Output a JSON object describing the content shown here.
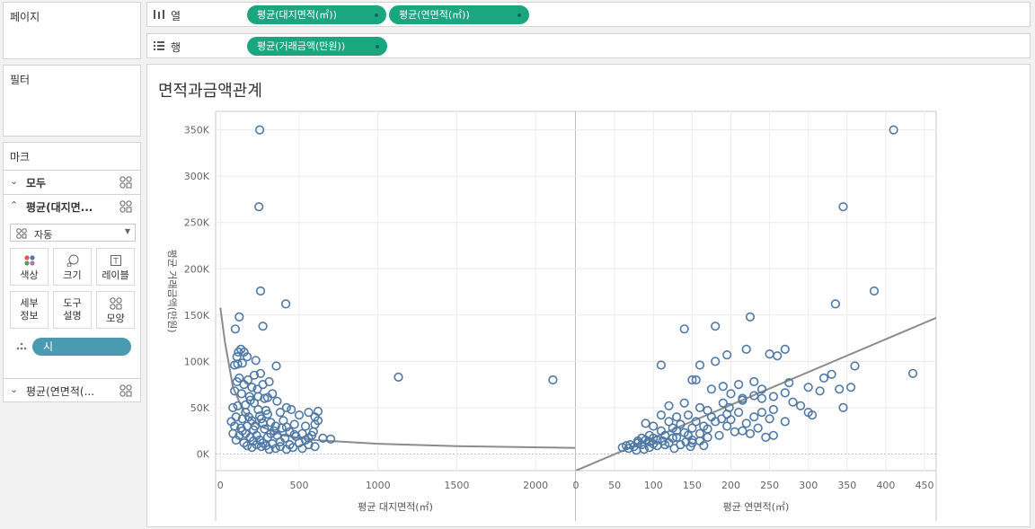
{
  "left_panel": {
    "pages_title": "페이지",
    "filters_title": "필터",
    "marks": {
      "title": "마크",
      "all_label": "모두",
      "card1_label": "평균(대지면...",
      "mark_type": "자동",
      "buttons": [
        "색상",
        "크기",
        "레이블",
        "세부\n정보",
        "도구\n설명",
        "모양"
      ],
      "detail_pill": "시",
      "card2_label": "평균(연면적(..."
    }
  },
  "shelves": {
    "columns_label": "열",
    "rows_label": "행",
    "column_pills": [
      "평균(대지면적(㎡))",
      "평균(연면적(㎡))"
    ],
    "row_pills": [
      "평균(거래금액(만원))"
    ]
  },
  "view": {
    "title": "면적과금액관계"
  },
  "chart_data": [
    {
      "type": "scatter",
      "xlabel": "평균 대지면적(㎡)",
      "ylabel": "평균 거래금액(만원)",
      "xlim": [
        -30,
        2250
      ],
      "ylim": [
        -18000,
        370000
      ],
      "xticks": [
        "0",
        "500",
        "1000",
        "1500",
        "2000"
      ],
      "yticks": [
        "0K",
        "50K",
        "100K",
        "150K",
        "200K",
        "250K",
        "300K",
        "350K"
      ],
      "marker": "circle-open",
      "color": "#4e79a7",
      "trend": "power",
      "trend_line": [
        [
          0,
          158000
        ],
        [
          30,
          120000
        ],
        [
          80,
          72000
        ],
        [
          150,
          45000
        ],
        [
          250,
          30000
        ],
        [
          400,
          20000
        ],
        [
          600,
          15000
        ],
        [
          1000,
          11000
        ],
        [
          1500,
          8500
        ],
        [
          2250,
          6500
        ]
      ],
      "points": [
        [
          250,
          350000
        ],
        [
          245,
          267000
        ],
        [
          255,
          176000
        ],
        [
          415,
          162000
        ],
        [
          120,
          148000
        ],
        [
          270,
          138000
        ],
        [
          95,
          135000
        ],
        [
          130,
          113000
        ],
        [
          115,
          110000
        ],
        [
          150,
          110000
        ],
        [
          105,
          105000
        ],
        [
          170,
          105000
        ],
        [
          110,
          97000
        ],
        [
          140,
          98000
        ],
        [
          225,
          101000
        ],
        [
          90,
          96000
        ],
        [
          355,
          95000
        ],
        [
          1130,
          83000
        ],
        [
          2110,
          80000
        ],
        [
          120,
          82000
        ],
        [
          175,
          80000
        ],
        [
          215,
          85000
        ],
        [
          255,
          87000
        ],
        [
          105,
          78000
        ],
        [
          200,
          72000
        ],
        [
          270,
          75000
        ],
        [
          310,
          78000
        ],
        [
          150,
          75000
        ],
        [
          235,
          70000
        ],
        [
          90,
          68000
        ],
        [
          135,
          65000
        ],
        [
          185,
          62000
        ],
        [
          330,
          65000
        ],
        [
          280,
          60000
        ],
        [
          215,
          55000
        ],
        [
          360,
          57000
        ],
        [
          420,
          50000
        ],
        [
          450,
          48000
        ],
        [
          80,
          50000
        ],
        [
          110,
          52000
        ],
        [
          160,
          45000
        ],
        [
          240,
          48000
        ],
        [
          300,
          43000
        ],
        [
          380,
          45000
        ],
        [
          500,
          42000
        ],
        [
          560,
          45000
        ],
        [
          620,
          46000
        ],
        [
          600,
          40000
        ],
        [
          100,
          40000
        ],
        [
          140,
          38000
        ],
        [
          200,
          36000
        ],
        [
          260,
          38000
        ],
        [
          320,
          34000
        ],
        [
          400,
          36000
        ],
        [
          470,
          32000
        ],
        [
          540,
          30000
        ],
        [
          600,
          32000
        ],
        [
          620,
          36000
        ],
        [
          70,
          35000
        ],
        [
          90,
          30000
        ],
        [
          130,
          28000
        ],
        [
          170,
          30000
        ],
        [
          210,
          26000
        ],
        [
          280,
          27000
        ],
        [
          340,
          25000
        ],
        [
          390,
          28000
        ],
        [
          440,
          24000
        ],
        [
          520,
          22000
        ],
        [
          590,
          24000
        ],
        [
          80,
          22000
        ],
        [
          120,
          20000
        ],
        [
          160,
          22000
        ],
        [
          230,
          20000
        ],
        [
          300,
          18000
        ],
        [
          360,
          20000
        ],
        [
          410,
          17000
        ],
        [
          480,
          19000
        ],
        [
          560,
          17000
        ],
        [
          650,
          17000
        ],
        [
          700,
          16000
        ],
        [
          100,
          15000
        ],
        [
          150,
          12000
        ],
        [
          210,
          14000
        ],
        [
          270,
          12000
        ],
        [
          330,
          11000
        ],
        [
          380,
          13000
        ],
        [
          440,
          10000
        ],
        [
          500,
          12000
        ],
        [
          560,
          10000
        ],
        [
          600,
          8000
        ],
        [
          200,
          7000
        ],
        [
          260,
          8000
        ],
        [
          310,
          5000
        ],
        [
          350,
          6000
        ],
        [
          420,
          5000
        ],
        [
          460,
          7000
        ],
        [
          520,
          6000
        ],
        [
          380,
          8000
        ],
        [
          170,
          9000
        ],
        [
          230,
          10000
        ],
        [
          290,
          9000
        ],
        [
          250,
          15000
        ],
        [
          320,
          22000
        ],
        [
          190,
          18000
        ],
        [
          140,
          25000
        ],
        [
          220,
          30000
        ],
        [
          350,
          30000
        ],
        [
          270,
          33000
        ],
        [
          180,
          40000
        ],
        [
          420,
          29000
        ],
        [
          470,
          21000
        ],
        [
          540,
          15000
        ],
        [
          580,
          20000
        ],
        [
          250,
          41000
        ],
        [
          290,
          47000
        ],
        [
          300,
          61000
        ],
        [
          190,
          58000
        ],
        [
          160,
          53000
        ],
        [
          240,
          62000
        ]
      ]
    },
    {
      "type": "scatter",
      "xlabel": "평균 연면적(㎡)",
      "ylabel": "평균 거래금액(만원)",
      "xlim": [
        0,
        465
      ],
      "ylim": [
        -18000,
        370000
      ],
      "xticks": [
        "0",
        "50",
        "100",
        "150",
        "200",
        "250",
        "300",
        "350",
        "400",
        "450"
      ],
      "yticks": [
        "0K",
        "50K",
        "100K",
        "150K",
        "200K",
        "250K",
        "300K",
        "350K"
      ],
      "marker": "circle-open",
      "color": "#4e79a7",
      "trend": "linear",
      "trend_line": [
        [
          0,
          -18000
        ],
        [
          465,
          147000
        ]
      ],
      "points": [
        [
          410,
          350000
        ],
        [
          345,
          267000
        ],
        [
          385,
          176000
        ],
        [
          335,
          162000
        ],
        [
          225,
          148000
        ],
        [
          180,
          138000
        ],
        [
          140,
          135000
        ],
        [
          220,
          113000
        ],
        [
          270,
          113000
        ],
        [
          250,
          108000
        ],
        [
          260,
          106000
        ],
        [
          195,
          107000
        ],
        [
          180,
          100000
        ],
        [
          160,
          96000
        ],
        [
          110,
          96000
        ],
        [
          360,
          95000
        ],
        [
          435,
          87000
        ],
        [
          330,
          86000
        ],
        [
          320,
          82000
        ],
        [
          275,
          77000
        ],
        [
          230,
          78000
        ],
        [
          150,
          80000
        ],
        [
          155,
          80000
        ],
        [
          190,
          73000
        ],
        [
          210,
          75000
        ],
        [
          240,
          70000
        ],
        [
          300,
          72000
        ],
        [
          315,
          68000
        ],
        [
          340,
          70000
        ],
        [
          355,
          72000
        ],
        [
          255,
          62000
        ],
        [
          230,
          63000
        ],
        [
          200,
          65000
        ],
        [
          175,
          70000
        ],
        [
          270,
          66000
        ],
        [
          280,
          56000
        ],
        [
          290,
          52000
        ],
        [
          300,
          45000
        ],
        [
          305,
          42000
        ],
        [
          345,
          50000
        ],
        [
          120,
          52000
        ],
        [
          140,
          55000
        ],
        [
          160,
          50000
        ],
        [
          190,
          55000
        ],
        [
          215,
          58000
        ],
        [
          240,
          60000
        ],
        [
          255,
          48000
        ],
        [
          270,
          35000
        ],
        [
          250,
          38000
        ],
        [
          230,
          40000
        ],
        [
          210,
          45000
        ],
        [
          195,
          43000
        ],
        [
          170,
          47000
        ],
        [
          145,
          42000
        ],
        [
          130,
          40000
        ],
        [
          110,
          42000
        ],
        [
          90,
          33000
        ],
        [
          100,
          30000
        ],
        [
          120,
          35000
        ],
        [
          135,
          32000
        ],
        [
          150,
          28000
        ],
        [
          165,
          30000
        ],
        [
          180,
          35000
        ],
        [
          195,
          30000
        ],
        [
          215,
          25000
        ],
        [
          235,
          28000
        ],
        [
          255,
          20000
        ],
        [
          245,
          18000
        ],
        [
          225,
          22000
        ],
        [
          205,
          24000
        ],
        [
          185,
          20000
        ],
        [
          170,
          18000
        ],
        [
          160,
          22000
        ],
        [
          145,
          20000
        ],
        [
          130,
          18000
        ],
        [
          115,
          20000
        ],
        [
          100,
          17000
        ],
        [
          90,
          15000
        ],
        [
          80,
          12000
        ],
        [
          70,
          10000
        ],
        [
          60,
          7000
        ],
        [
          75,
          8000
        ],
        [
          85,
          10000
        ],
        [
          95,
          13000
        ],
        [
          105,
          15000
        ],
        [
          120,
          12000
        ],
        [
          135,
          10000
        ],
        [
          150,
          12000
        ],
        [
          165,
          9000
        ],
        [
          150,
          15000
        ],
        [
          130,
          25000
        ],
        [
          110,
          25000
        ],
        [
          95,
          20000
        ],
        [
          85,
          17000
        ],
        [
          140,
          23000
        ],
        [
          155,
          35000
        ],
        [
          175,
          40000
        ],
        [
          200,
          37000
        ],
        [
          220,
          33000
        ],
        [
          240,
          45000
        ],
        [
          125,
          28000
        ],
        [
          115,
          10000
        ],
        [
          105,
          9000
        ],
        [
          95,
          7000
        ],
        [
          88,
          5000
        ],
        [
          78,
          4000
        ],
        [
          68,
          6000
        ],
        [
          65,
          9000
        ],
        [
          80,
          14000
        ],
        [
          100,
          11000
        ],
        [
          112,
          14000
        ],
        [
          125,
          17000
        ],
        [
          142,
          13000
        ],
        [
          160,
          14000
        ],
        [
          148,
          8000
        ],
        [
          127,
          6000
        ],
        [
          170,
          27000
        ],
        [
          188,
          38000
        ],
        [
          198,
          50000
        ],
        [
          215,
          60000
        ]
      ]
    }
  ]
}
